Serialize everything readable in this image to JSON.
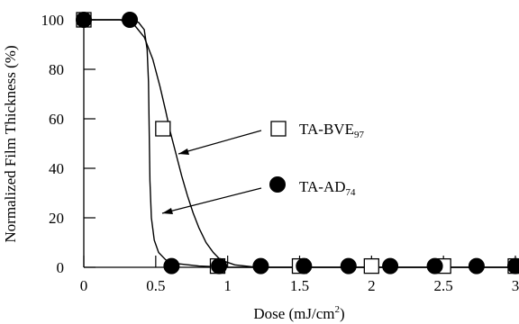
{
  "chart_data": {
    "type": "scatter",
    "title": "",
    "xlabel": "Dose (mJ/cm",
    "xlabel_sup": "2",
    "xlabel_end": ")",
    "ylabel": "Normalized Film Thickness (%)",
    "xlim": [
      0,
      3
    ],
    "ylim": [
      0,
      100
    ],
    "x_ticks": [
      0,
      0.5,
      1,
      1.5,
      2,
      2.5,
      3
    ],
    "x_tick_labels": [
      "0",
      "0.5",
      "1",
      "1.5",
      "2",
      "2.5",
      "3"
    ],
    "y_ticks": [
      0,
      20,
      40,
      60,
      80,
      100
    ],
    "y_tick_labels": [
      "0",
      "20",
      "40",
      "60",
      "80",
      "100"
    ],
    "grid": false,
    "legend_position": "right",
    "series": [
      {
        "name": "TA-BVE",
        "name_sub": "97",
        "marker": "open-square",
        "x": [
          0,
          0.55,
          0.93,
          1.5,
          2.0,
          2.5,
          3.0
        ],
        "y": [
          100,
          56,
          0.5,
          0.5,
          0.5,
          0.5,
          0.5
        ],
        "fit": [
          [
            0,
            100
          ],
          [
            0.25,
            100
          ],
          [
            0.35,
            98
          ],
          [
            0.42,
            93
          ],
          [
            0.48,
            84
          ],
          [
            0.53,
            73
          ],
          [
            0.57,
            63
          ],
          [
            0.6,
            55
          ],
          [
            0.64,
            46
          ],
          [
            0.68,
            37
          ],
          [
            0.72,
            29
          ],
          [
            0.76,
            22
          ],
          [
            0.8,
            16
          ],
          [
            0.85,
            10
          ],
          [
            0.9,
            6
          ],
          [
            0.95,
            3
          ],
          [
            1.05,
            1
          ],
          [
            1.2,
            0
          ],
          [
            3.0,
            0
          ]
        ]
      },
      {
        "name": "TA-AD",
        "name_sub": "74",
        "marker": "filled-circle",
        "x": [
          0,
          0.32,
          0.61,
          0.94,
          1.23,
          1.53,
          1.84,
          2.13,
          2.44,
          2.73,
          3.0
        ],
        "y": [
          100,
          100,
          0.5,
          0.5,
          0.5,
          0.5,
          0.5,
          0.5,
          0.5,
          0.5,
          0.5
        ],
        "fit": [
          [
            0,
            100
          ],
          [
            0.3,
            100
          ],
          [
            0.38,
            99
          ],
          [
            0.42,
            96
          ],
          [
            0.44,
            88
          ],
          [
            0.45,
            75
          ],
          [
            0.455,
            55
          ],
          [
            0.46,
            35
          ],
          [
            0.47,
            20
          ],
          [
            0.49,
            11
          ],
          [
            0.52,
            6
          ],
          [
            0.57,
            3
          ],
          [
            0.65,
            1.5
          ],
          [
            0.8,
            0.5
          ],
          [
            1.0,
            0
          ],
          [
            3.0,
            0
          ]
        ]
      }
    ]
  }
}
